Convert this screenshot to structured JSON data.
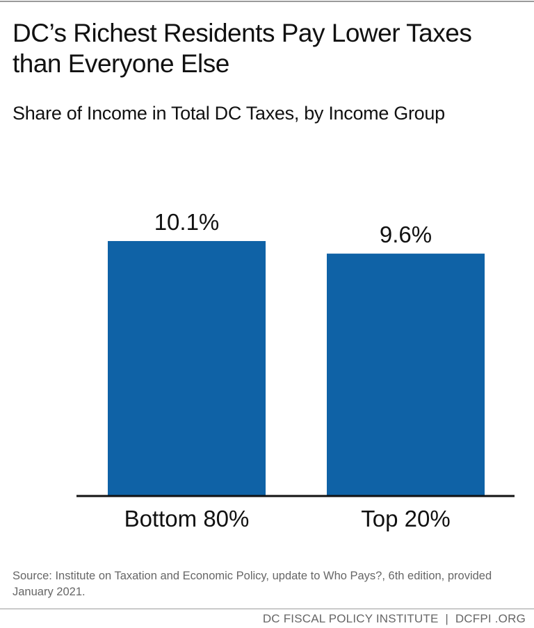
{
  "title": "DC’s Richest Residents Pay Lower Taxes than Everyone Else",
  "subtitle": "Share of Income in Total DC Taxes, by Income Group",
  "chart_data": {
    "type": "bar",
    "categories": [
      "Bottom 80%",
      "Top 20%"
    ],
    "values": [
      10.1,
      9.6
    ],
    "data_labels": [
      "10.1%",
      "9.6%"
    ],
    "title": "DC’s Richest Residents Pay Lower Taxes than Everyone Else",
    "subtitle": "Share of Income in Total DC Taxes, by Income Group",
    "xlabel": "",
    "ylabel": "",
    "grid": false,
    "legend": "none",
    "bar_color": "#0f62a6"
  },
  "source": "Source: Institute on Taxation and Economic Policy, update to Who Pays?, 6th edition, provided January 2021.",
  "footer": "DC FISCAL POLICY INSTITUTE  |  DCFPI .ORG"
}
